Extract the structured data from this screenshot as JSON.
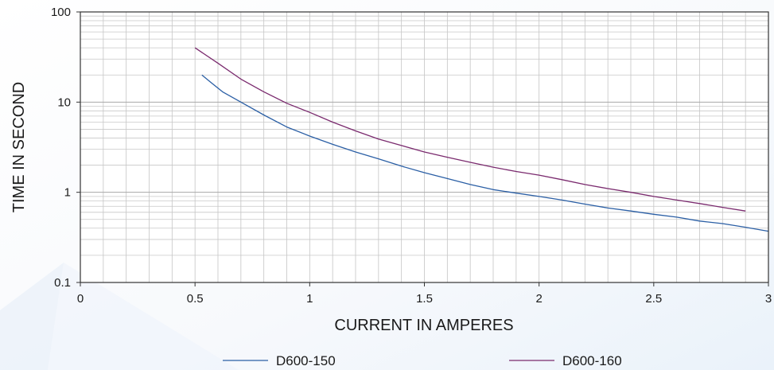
{
  "chart_data": {
    "type": "line",
    "title": "",
    "xlabel": "CURRENT IN AMPERES",
    "ylabel": "TIME IN SECOND",
    "xlim": [
      0,
      3
    ],
    "ylim": [
      0.1,
      100
    ],
    "yscale": "log",
    "grid": true,
    "legend_position": "bottom",
    "x_ticks": [
      "0",
      "0.5",
      "1",
      "1.5",
      "2",
      "2.5",
      "3"
    ],
    "y_ticks": [
      "0.1",
      "1",
      "10",
      "100"
    ],
    "series": [
      {
        "name": "D600-150",
        "color": "#2b5fa5",
        "x": [
          0.53,
          0.57,
          0.62,
          0.7,
          0.8,
          0.9,
          1.0,
          1.1,
          1.2,
          1.3,
          1.4,
          1.5,
          1.6,
          1.7,
          1.8,
          1.9,
          2.0,
          2.1,
          2.2,
          2.3,
          2.4,
          2.5,
          2.6,
          2.7,
          2.8,
          2.9,
          3.0
        ],
        "y": [
          20,
          16.5,
          13,
          10,
          7.2,
          5.3,
          4.2,
          3.4,
          2.8,
          2.35,
          1.95,
          1.65,
          1.42,
          1.22,
          1.07,
          0.98,
          0.9,
          0.82,
          0.74,
          0.67,
          0.62,
          0.57,
          0.53,
          0.48,
          0.45,
          0.41,
          0.37
        ]
      },
      {
        "name": "D600-160",
        "color": "#7a2a6e",
        "x": [
          0.5,
          0.6,
          0.7,
          0.8,
          0.9,
          1.0,
          1.1,
          1.2,
          1.3,
          1.4,
          1.5,
          1.6,
          1.7,
          1.8,
          1.9,
          2.0,
          2.1,
          2.2,
          2.3,
          2.4,
          2.5,
          2.6,
          2.7,
          2.8,
          2.9
        ],
        "y": [
          40,
          27,
          18,
          13,
          9.7,
          7.7,
          6.0,
          4.8,
          3.9,
          3.3,
          2.8,
          2.45,
          2.15,
          1.9,
          1.7,
          1.55,
          1.38,
          1.22,
          1.1,
          1.0,
          0.9,
          0.82,
          0.75,
          0.68,
          0.62
        ]
      }
    ]
  }
}
